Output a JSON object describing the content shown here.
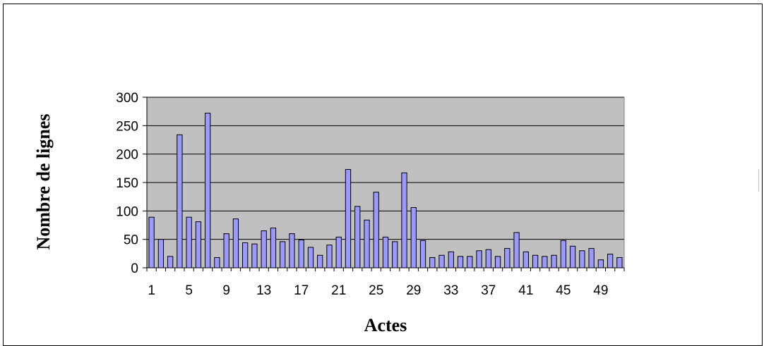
{
  "chart_data": {
    "type": "bar",
    "title": "",
    "xlabel": "Actes",
    "ylabel": "Nombre de lignes",
    "ylim": [
      0,
      300
    ],
    "yticks": [
      0,
      50,
      100,
      150,
      200,
      250,
      300
    ],
    "xtick_labels": [
      "1",
      "5",
      "9",
      "13",
      "17",
      "21",
      "25",
      "29",
      "33",
      "37",
      "41",
      "45",
      "49"
    ],
    "grid": true,
    "legend": "none",
    "categories": [
      "1",
      "2",
      "3",
      "4",
      "5",
      "6",
      "7",
      "8",
      "9",
      "10",
      "11",
      "12",
      "13",
      "14",
      "15",
      "16",
      "17",
      "18",
      "19",
      "20",
      "21",
      "22",
      "23",
      "24",
      "25",
      "26",
      "27",
      "28",
      "29",
      "30",
      "31",
      "32",
      "33",
      "34",
      "35",
      "36",
      "37",
      "38",
      "39",
      "40",
      "41",
      "42",
      "43",
      "44",
      "45",
      "46",
      "47",
      "48",
      "49",
      "50",
      "51"
    ],
    "values": [
      89,
      50,
      20,
      234,
      89,
      81,
      272,
      18,
      60,
      86,
      44,
      42,
      65,
      70,
      46,
      60,
      49,
      36,
      22,
      40,
      54,
      173,
      108,
      84,
      133,
      54,
      46,
      167,
      106,
      48,
      18,
      22,
      28,
      20,
      20,
      30,
      32,
      20,
      34,
      62,
      28,
      22,
      20,
      22,
      48,
      38,
      30,
      34,
      14,
      24,
      18
    ],
    "colors": {
      "bar": "#9999ff",
      "plot_bg": "#c0c0c0",
      "grid": "#000000"
    }
  }
}
